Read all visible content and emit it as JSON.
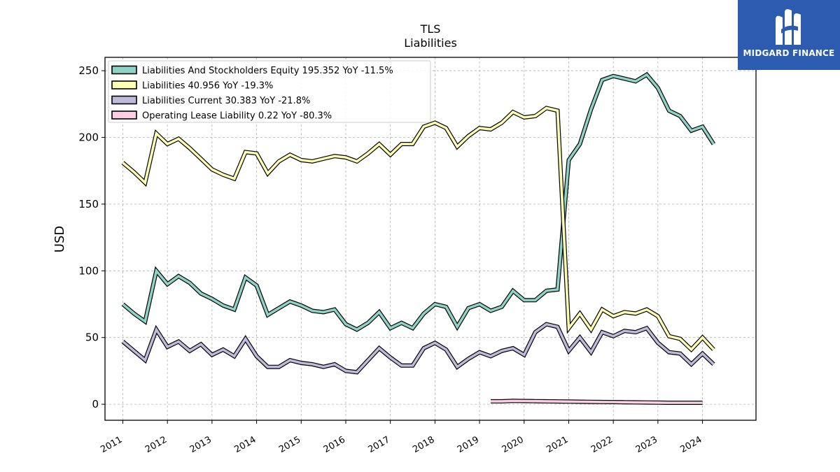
{
  "brand": {
    "name": "MIDGARD FINANCE",
    "background": "#2d5bb0"
  },
  "chart_data": {
    "type": "line",
    "title": "TLS",
    "subtitle": "Liabilities",
    "ylabel": "USD",
    "xlabel": "",
    "ylim": [
      -12,
      260
    ],
    "xlim": [
      2010.6,
      2025.2
    ],
    "yticks": [
      0,
      50,
      100,
      150,
      200,
      250
    ],
    "xticks": [
      "2011",
      "2012",
      "2013",
      "2014",
      "2015",
      "2016",
      "2017",
      "2018",
      "2019",
      "2020",
      "2021",
      "2022",
      "2023",
      "2024"
    ],
    "grid": true,
    "legend_position": "top-left",
    "series": [
      {
        "name": "Liabilities And Stockholders Equity",
        "legend": "Liabilities And Stockholders Equity  195.352 YoY -11.5%",
        "color": "#8dd3c7",
        "x": [
          2011.0,
          2011.25,
          2011.5,
          2011.75,
          2012.0,
          2012.25,
          2012.5,
          2012.75,
          2013.0,
          2013.25,
          2013.5,
          2013.75,
          2014.0,
          2014.25,
          2014.5,
          2014.75,
          2015.0,
          2015.25,
          2015.5,
          2015.75,
          2016.0,
          2016.25,
          2016.5,
          2016.75,
          2017.0,
          2017.25,
          2017.5,
          2017.75,
          2018.0,
          2018.25,
          2018.5,
          2018.75,
          2019.0,
          2019.25,
          2019.5,
          2019.75,
          2020.0,
          2020.25,
          2020.5,
          2020.75,
          2021.0,
          2021.25,
          2021.5,
          2021.75,
          2022.0,
          2022.25,
          2022.5,
          2022.75,
          2023.0,
          2023.25,
          2023.5,
          2023.75,
          2024.0,
          2024.25
        ],
        "values": [
          75,
          68,
          62,
          100,
          90,
          96,
          91,
          83,
          79,
          74,
          71,
          95,
          89,
          67,
          72,
          77,
          74,
          70,
          69,
          71,
          60,
          56,
          61,
          69,
          57,
          61,
          57,
          68,
          75,
          73,
          58,
          72,
          75,
          70,
          73,
          85,
          78,
          78,
          85,
          86,
          183,
          195,
          221,
          243,
          246,
          244,
          242,
          247,
          237,
          220,
          216,
          205,
          208,
          195
        ]
      },
      {
        "name": "Liabilities",
        "legend": "Liabilities  40.956 YoY -19.3%",
        "color": "#ffffb3",
        "x": [
          2011.0,
          2011.25,
          2011.5,
          2011.75,
          2012.0,
          2012.25,
          2012.5,
          2012.75,
          2013.0,
          2013.25,
          2013.5,
          2013.75,
          2014.0,
          2014.25,
          2014.5,
          2014.75,
          2015.0,
          2015.25,
          2015.5,
          2015.75,
          2016.0,
          2016.25,
          2016.5,
          2016.75,
          2017.0,
          2017.25,
          2017.5,
          2017.75,
          2018.0,
          2018.25,
          2018.5,
          2018.75,
          2019.0,
          2019.25,
          2019.5,
          2019.75,
          2020.0,
          2020.25,
          2020.5,
          2020.75,
          2021.0,
          2021.25,
          2021.5,
          2021.75,
          2022.0,
          2022.25,
          2022.5,
          2022.75,
          2023.0,
          2023.25,
          2023.5,
          2023.75,
          2024.0,
          2024.25
        ],
        "values": [
          181,
          174,
          166,
          203,
          195,
          199,
          192,
          184,
          176,
          172,
          169,
          189,
          188,
          173,
          182,
          187,
          183,
          182,
          184,
          186,
          185,
          182,
          188,
          195,
          187,
          195,
          195,
          208,
          211,
          207,
          193,
          201,
          207,
          206,
          211,
          219,
          215,
          216,
          222,
          220,
          57,
          68,
          56,
          71,
          66,
          69,
          68,
          71,
          66,
          51,
          49,
          41,
          50,
          41
        ]
      },
      {
        "name": "Liabilities Current",
        "legend": "Liabilities Current  30.383 YoY -21.8%",
        "color": "#bebada",
        "x": [
          2011.0,
          2011.25,
          2011.5,
          2011.75,
          2012.0,
          2012.25,
          2012.5,
          2012.75,
          2013.0,
          2013.25,
          2013.5,
          2013.75,
          2014.0,
          2014.25,
          2014.5,
          2014.75,
          2015.0,
          2015.25,
          2015.5,
          2015.75,
          2016.0,
          2016.25,
          2016.5,
          2016.75,
          2017.0,
          2017.25,
          2017.5,
          2017.75,
          2018.0,
          2018.25,
          2018.5,
          2018.75,
          2019.0,
          2019.25,
          2019.5,
          2019.75,
          2020.0,
          2020.25,
          2020.5,
          2020.75,
          2021.0,
          2021.25,
          2021.5,
          2021.75,
          2022.0,
          2022.25,
          2022.5,
          2022.75,
          2023.0,
          2023.25,
          2023.5,
          2023.75,
          2024.0,
          2024.25
        ],
        "values": [
          47,
          40,
          33,
          56,
          43,
          47,
          40,
          45,
          37,
          41,
          36,
          49,
          36,
          28,
          28,
          33,
          31,
          30,
          28,
          30,
          25,
          24,
          33,
          42,
          35,
          29,
          29,
          42,
          46,
          41,
          28,
          34,
          39,
          36,
          40,
          42,
          37,
          54,
          60,
          58,
          40,
          50,
          39,
          54,
          51,
          55,
          54,
          57,
          46,
          39,
          38,
          30,
          38,
          30
        ]
      },
      {
        "name": "Operating Lease Liability",
        "legend": "Operating Lease Liability  0.22 YoY -80.3%",
        "color": "#fccde5",
        "x": [
          2019.25,
          2019.5,
          2019.75,
          2020.0,
          2020.25,
          2020.5,
          2020.75,
          2021.0,
          2021.25,
          2021.5,
          2021.75,
          2022.0,
          2022.25,
          2022.5,
          2022.75,
          2023.0,
          2023.25,
          2023.5,
          2023.75,
          2024.0
        ],
        "values": [
          2.2,
          2.2,
          2.5,
          2.4,
          2.3,
          2.2,
          2.1,
          2.0,
          1.9,
          1.8,
          1.7,
          1.6,
          1.5,
          1.4,
          1.3,
          1.2,
          1.1,
          1.1,
          1.1,
          1.1
        ]
      }
    ]
  }
}
